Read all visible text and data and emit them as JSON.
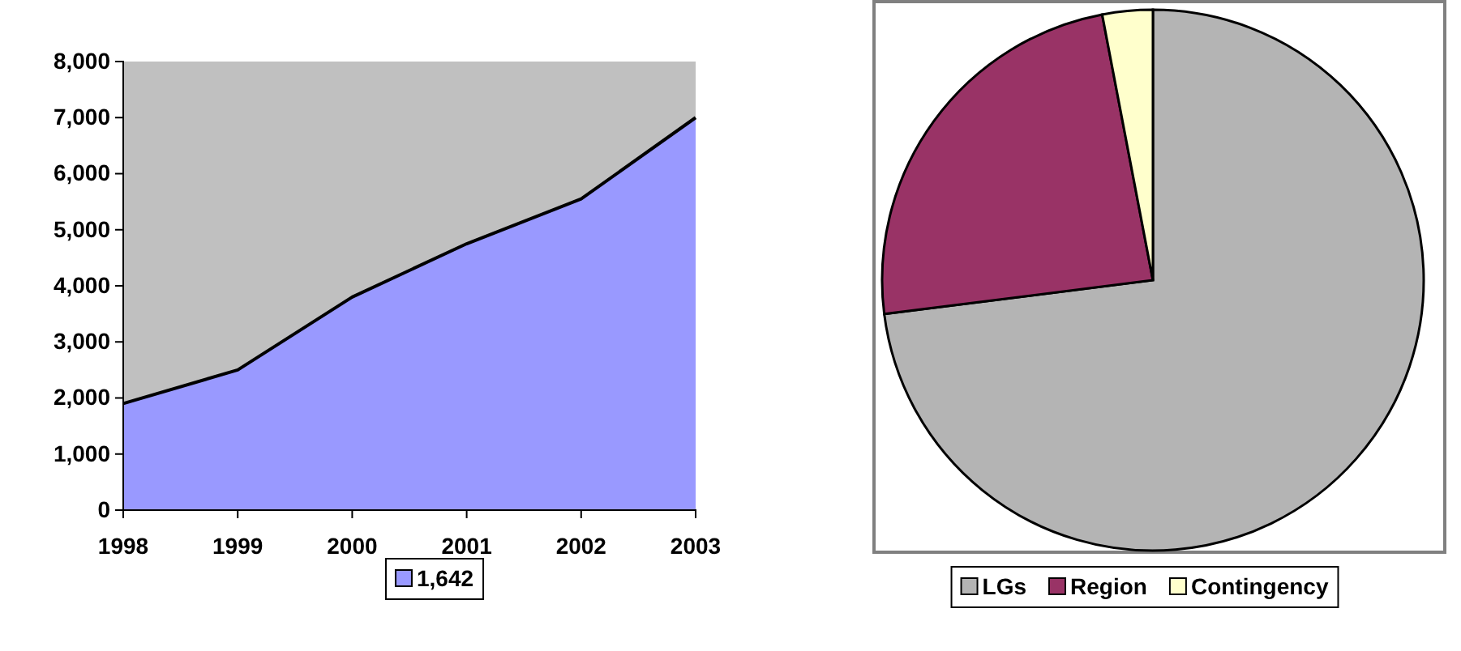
{
  "chart_data": [
    {
      "type": "area",
      "categories": [
        "1998",
        "1999",
        "2000",
        "2001",
        "2002",
        "2003"
      ],
      "series": [
        {
          "name": "1,642",
          "color": "#9999ff",
          "values": [
            1900,
            2500,
            3800,
            4750,
            5550,
            7000
          ]
        }
      ],
      "ylim": [
        0,
        8000
      ],
      "yticks": [
        {
          "value": 0,
          "label": "0"
        },
        {
          "value": 1000,
          "label": "1,000"
        },
        {
          "value": 2000,
          "label": "2,000"
        },
        {
          "value": 3000,
          "label": "3,000"
        },
        {
          "value": 4000,
          "label": "4,000"
        },
        {
          "value": 5000,
          "label": "5,000"
        },
        {
          "value": 6000,
          "label": "6,000"
        },
        {
          "value": 7000,
          "label": "7,000"
        },
        {
          "value": 8000,
          "label": "8,000"
        }
      ],
      "legend": "bottom"
    },
    {
      "type": "pie",
      "categories": [
        "LGs",
        "Region",
        "Contingency"
      ],
      "values": [
        73,
        24,
        3
      ],
      "colors": [
        "#b4b4b4",
        "#993366",
        "#ffffcc"
      ],
      "legend": "bottom"
    }
  ]
}
